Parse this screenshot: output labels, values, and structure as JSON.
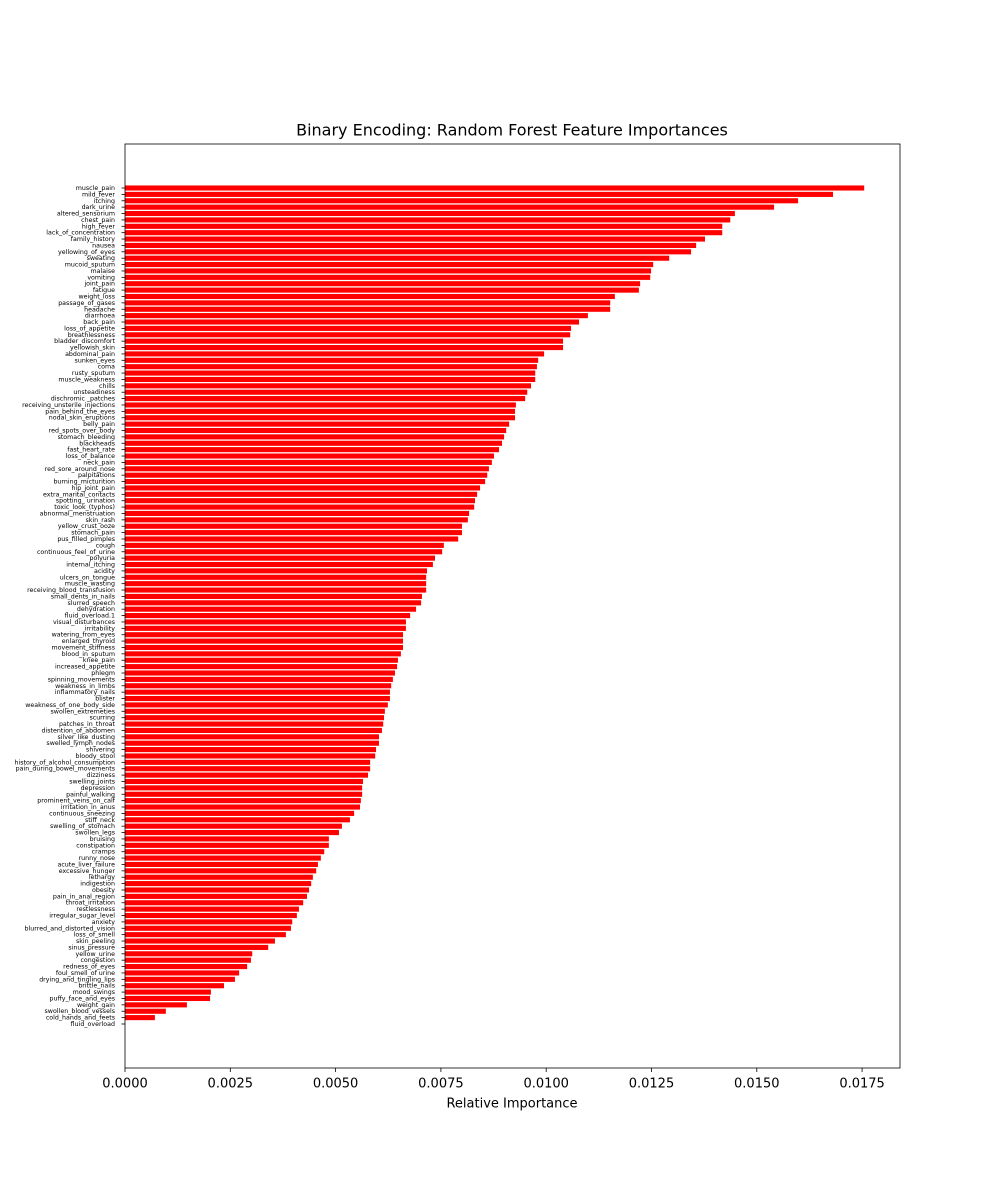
{
  "chart_data": {
    "type": "barh",
    "title": "Binary Encoding: Random Forest Feature Importances",
    "x_label": "Relative Importance",
    "color": "#ff0000",
    "categories": [
      "muscle_pain",
      "mild_fever",
      "itching",
      "dark_urine",
      "altered_sensorium",
      "chest_pain",
      "high_fever",
      "lack_of_concentration",
      "family_history",
      "nausea",
      "yellowing_of_eyes",
      "sweating",
      "mucoid_sputum",
      "malaise",
      "vomiting",
      "joint_pain",
      "fatigue",
      "weight_loss",
      "passage_of_gases",
      "headache",
      "diarrhoea",
      "back_pain",
      "loss_of_appetite",
      "breathlessness",
      "bladder_discomfort",
      "yellowish_skin",
      "abdominal_pain",
      "sunken_eyes",
      "coma",
      "rusty_sputum",
      "muscle_weakness",
      "chills",
      "unsteadiness",
      "dischromic _patches",
      "receiving_unsterile_injections",
      "pain_behind_the_eyes",
      "nodal_skin_eruptions",
      "belly_pain",
      "red_spots_over_body",
      "stomach_bleeding",
      "blackheads",
      "fast_heart_rate",
      "loss_of_balance",
      "neck_pain",
      "red_sore_around_nose",
      "palpitations",
      "burning_micturition",
      "hip_joint_pain",
      "extra_marital_contacts",
      "spotting_ urination",
      "toxic_look_(typhos)",
      "abnormal_menstruation",
      "skin_rash",
      "yellow_crust_ooze",
      "stomach_pain",
      "pus_filled_pimples",
      "cough",
      "continuous_feel_of_urine",
      "polyuria",
      "internal_itching",
      "acidity",
      "ulcers_on_tongue",
      "muscle_wasting",
      "receiving_blood_transfusion",
      "small_dents_in_nails",
      "slurred_speech",
      "dehydration",
      "fluid_overload.1",
      "visual_disturbances",
      "irritability",
      "watering_from_eyes",
      "enlarged_thyroid",
      "movement_stiffness",
      "blood_in_sputum",
      "knee_pain",
      "increased_appetite",
      "phlegm",
      "spinning_movements",
      "weakness_in_limbs",
      "inflammatory_nails",
      "blister",
      "weakness_of_one_body_side",
      "swollen_extremeties",
      "scurring",
      "patches_in_throat",
      "distention_of_abdomen",
      "silver_like_dusting",
      "swelled_lymph_nodes",
      "shivering",
      "bloody_stool",
      "history_of_alcohol_consumption",
      "pain_during_bowel_movements",
      "dizziness",
      "swelling_joints",
      "depression",
      "painful_walking",
      "prominent_veins_on_calf",
      "irritation_in_anus",
      "continuous_sneezing",
      "stiff_neck",
      "swelling_of_stomach",
      "swollen_legs",
      "bruising",
      "constipation",
      "cramps",
      "runny_nose",
      "acute_liver_failure",
      "excessive_hunger",
      "lethargy",
      "indigestion",
      "obesity",
      "pain_in_anal_region",
      "throat_irritation",
      "restlessness",
      "irregular_sugar_level",
      "anxiety",
      "blurred_and_distorted_vision",
      "loss_of_smell",
      "skin_peeling",
      "sinus_pressure",
      "yellow_urine",
      "congestion",
      "redness_of_eyes",
      "foul_smell_of urine",
      "drying_and_tingling_lips",
      "brittle_nails",
      "mood_swings",
      "puffy_face_and_eyes",
      "weight_gain",
      "swollen_blood_vessels",
      "cold_hands_and_feets",
      "fluid_overload"
    ],
    "values": [
      0.01755,
      0.01681,
      0.01598,
      0.01541,
      0.01448,
      0.01437,
      0.01418,
      0.01418,
      0.01377,
      0.01356,
      0.01344,
      0.01292,
      0.01254,
      0.01249,
      0.01247,
      0.01223,
      0.0122,
      0.01163,
      0.01152,
      0.01152,
      0.01099,
      0.01078,
      0.01059,
      0.01057,
      0.0104,
      0.0104,
      0.00995,
      0.00981,
      0.00978,
      0.00974,
      0.00974,
      0.00964,
      0.00955,
      0.0095,
      0.00928,
      0.00926,
      0.00926,
      0.00912,
      0.00905,
      0.009,
      0.00895,
      0.00888,
      0.00876,
      0.00871,
      0.00864,
      0.0086,
      0.00855,
      0.00843,
      0.00836,
      0.00831,
      0.00829,
      0.00817,
      0.00814,
      0.008,
      0.008,
      0.00791,
      0.00757,
      0.00753,
      0.00736,
      0.00731,
      0.00717,
      0.00715,
      0.00715,
      0.00715,
      0.00705,
      0.00703,
      0.00691,
      0.00677,
      0.00667,
      0.00667,
      0.0066,
      0.0066,
      0.0066,
      0.00655,
      0.00648,
      0.00646,
      0.00641,
      0.00636,
      0.00632,
      0.00629,
      0.00629,
      0.00624,
      0.00617,
      0.00615,
      0.00613,
      0.0061,
      0.00603,
      0.00603,
      0.00596,
      0.00594,
      0.00582,
      0.00582,
      0.00577,
      0.00565,
      0.00563,
      0.00563,
      0.0056,
      0.00558,
      0.00544,
      0.00534,
      0.00515,
      0.00508,
      0.00484,
      0.00484,
      0.00473,
      0.00465,
      0.00458,
      0.00454,
      0.00446,
      0.00442,
      0.00437,
      0.00432,
      0.00423,
      0.00413,
      0.00408,
      0.00397,
      0.00394,
      0.00382,
      0.00356,
      0.0034,
      0.00302,
      0.00299,
      0.0029,
      0.00271,
      0.00261,
      0.00235,
      0.00204,
      0.00202,
      0.00147,
      0.00097,
      0.00071,
      0
    ],
    "xlim": [
      0,
      0.0184
    ],
    "xticks": [
      {
        "value": 0,
        "label": "0.0000"
      },
      {
        "value": 0.0025,
        "label": "0.0025"
      },
      {
        "value": 0.005,
        "label": "0.0050"
      },
      {
        "value": 0.0075,
        "label": "0.0075"
      },
      {
        "value": 0.01,
        "label": "0.0100"
      },
      {
        "value": 0.0125,
        "label": "0.0125"
      },
      {
        "value": 0.015,
        "label": "0.0150"
      },
      {
        "value": 0.0175,
        "label": "0.0175"
      }
    ]
  }
}
